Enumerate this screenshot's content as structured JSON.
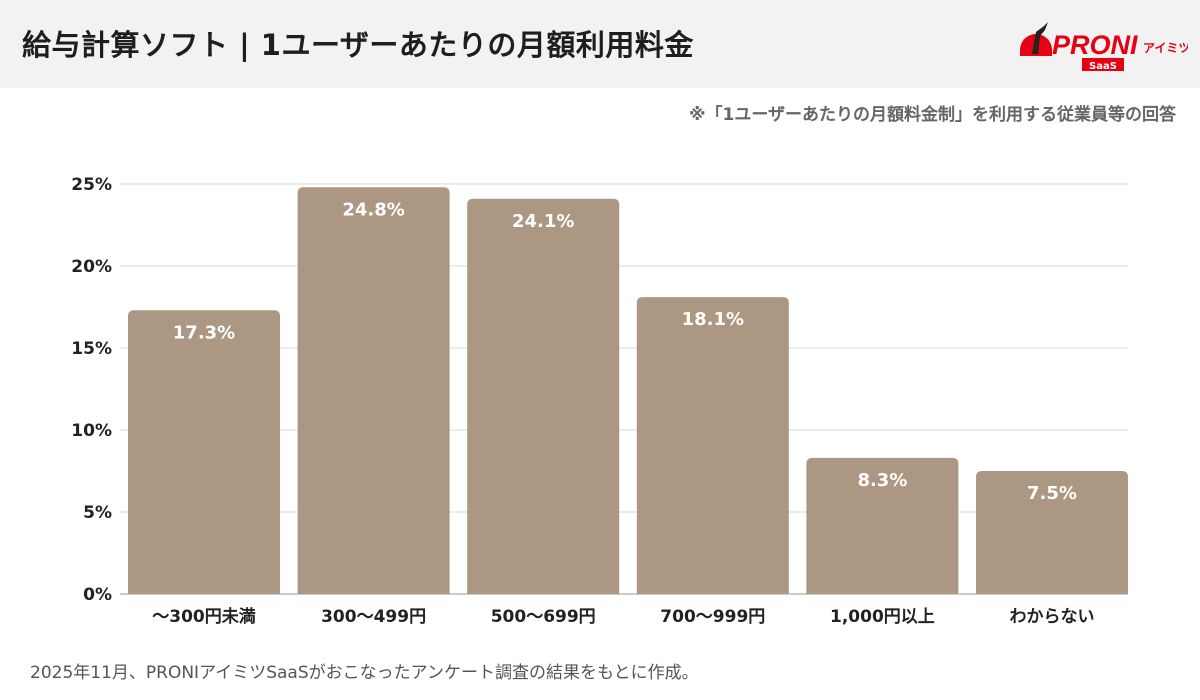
{
  "header": {
    "title": "給与計算ソフト | 1ユーザーあたりの月額利用料金"
  },
  "logo": {
    "text": "PRONI",
    "sub": "アイミツ",
    "badge": "SaaS"
  },
  "note": "※「1ユーザーあたりの月額料金制」を利用する従業員等の回答",
  "footer": "2025年11月、PRONIアイミツSaaSがおこなったアンケート調査の結果をもとに作成。",
  "colors": {
    "bar": "#ab9782",
    "header_bg": "#f2f2f2",
    "brand": "#e60012"
  },
  "chart_data": {
    "type": "bar",
    "categories": [
      "〜300円未満",
      "300〜499円",
      "500〜699円",
      "700〜999円",
      "1,000円以上",
      "わからない"
    ],
    "values": [
      17.3,
      24.8,
      24.1,
      18.1,
      8.3,
      7.5
    ],
    "data_labels": [
      "17.3%",
      "24.8%",
      "24.1%",
      "18.1%",
      "8.3%",
      "7.5%"
    ],
    "yticks": [
      0,
      5,
      10,
      15,
      20,
      25
    ],
    "ytick_labels": [
      "0%",
      "5%",
      "10%",
      "15%",
      "20%",
      "25%"
    ],
    "ylim": [
      0,
      25
    ],
    "grid": true,
    "legend": "none"
  }
}
